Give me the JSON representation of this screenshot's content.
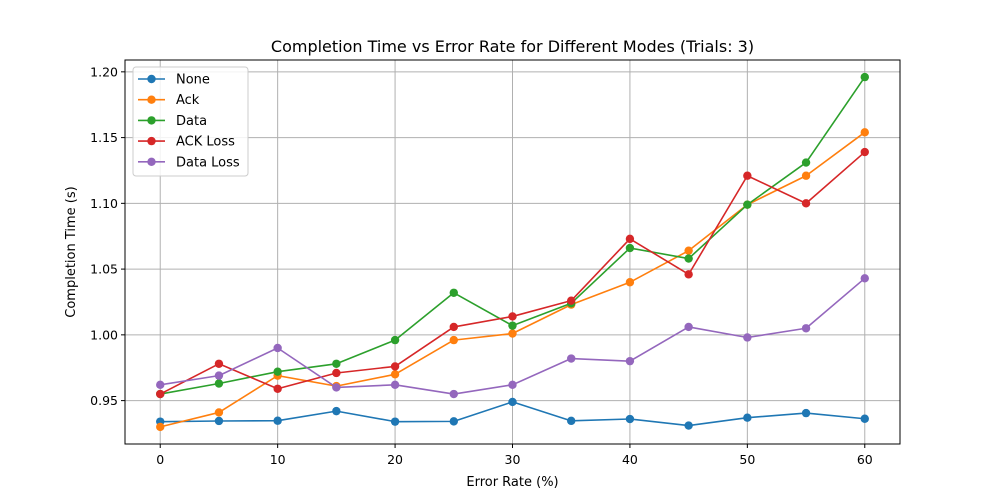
{
  "chart_data": {
    "type": "line",
    "title": "Completion Time vs Error Rate for Different Modes (Trials: 3)",
    "xlabel": "Error Rate (%)",
    "ylabel": "Completion Time (s)",
    "xlim": [
      -3,
      63
    ],
    "ylim": [
      0.917,
      1.209
    ],
    "x_ticks": [
      0,
      10,
      20,
      30,
      40,
      50,
      60
    ],
    "x_tick_labels": [
      "0",
      "10",
      "20",
      "30",
      "40",
      "50",
      "60"
    ],
    "y_ticks": [
      0.95,
      1.0,
      1.05,
      1.1,
      1.15,
      1.2
    ],
    "y_tick_labels": [
      "0.95",
      "1.00",
      "1.05",
      "1.10",
      "1.15",
      "1.20"
    ],
    "grid": true,
    "legend_position": "top-left",
    "x": [
      0,
      5,
      10,
      15,
      20,
      25,
      30,
      35,
      40,
      45,
      50,
      55,
      60
    ],
    "series": [
      {
        "name": "None",
        "color": "#1f77b4",
        "values": [
          0.934,
          0.9345,
          0.9347,
          0.942,
          0.934,
          0.9342,
          0.949,
          0.9346,
          0.936,
          0.931,
          0.937,
          0.9405,
          0.9362
        ]
      },
      {
        "name": "Ack",
        "color": "#ff7f0e",
        "values": [
          0.93,
          0.941,
          0.969,
          0.961,
          0.97,
          0.996,
          1.001,
          1.023,
          1.04,
          1.064,
          1.099,
          1.121,
          1.154
        ]
      },
      {
        "name": "Data",
        "color": "#2ca02c",
        "values": [
          0.955,
          0.963,
          0.972,
          0.978,
          0.996,
          1.032,
          1.007,
          1.024,
          1.066,
          1.058,
          1.099,
          1.131,
          1.196
        ]
      },
      {
        "name": "ACK Loss",
        "color": "#d62728",
        "values": [
          0.955,
          0.978,
          0.959,
          0.971,
          0.976,
          1.006,
          1.014,
          1.026,
          1.073,
          1.046,
          1.121,
          1.1,
          1.139
        ]
      },
      {
        "name": "Data Loss",
        "color": "#9467bd",
        "values": [
          0.962,
          0.969,
          0.99,
          0.96,
          0.962,
          0.955,
          0.962,
          0.982,
          0.98,
          1.006,
          0.998,
          1.005,
          1.043
        ]
      }
    ]
  }
}
